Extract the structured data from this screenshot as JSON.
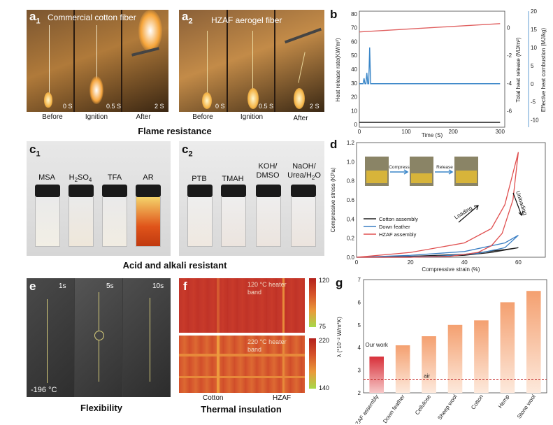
{
  "panel_a1": {
    "label": "a",
    "sub": "1",
    "title": "Commercial cotton fiber",
    "frames": [
      {
        "caption": "Before",
        "time": "0 S"
      },
      {
        "caption": "Ignition",
        "time": "0.5 S"
      },
      {
        "caption": "After",
        "time": "2 S"
      }
    ]
  },
  "panel_a2": {
    "label": "a",
    "sub": "2",
    "title": "HZAF aerogel fiber",
    "frames": [
      {
        "caption": "Before",
        "time": "0 S"
      },
      {
        "caption": "Ignition",
        "time": "0.5 S"
      },
      {
        "caption": "After",
        "time": "2 S"
      }
    ]
  },
  "flame_caption": "Flame resistance",
  "panel_c1": {
    "label": "c",
    "sub": "1",
    "vials": [
      "MSA",
      "H2SO4",
      "TFA",
      "AR"
    ]
  },
  "panel_c2": {
    "label": "c",
    "sub": "2",
    "vials": [
      "PTB",
      "TMAH",
      "KOH/ DMSO",
      "NaOH/ Urea/H2O"
    ]
  },
  "acid_caption": "Acid and alkali resistant",
  "panel_e": {
    "label": "e",
    "times": [
      "1s",
      "5s",
      "10s"
    ],
    "temp": "-196 °C",
    "caption": "Flexibility"
  },
  "panel_f": {
    "label": "f",
    "top_band": "120 °C heater band",
    "bottom_band": "220 °C heater band",
    "scale_top": [
      "120",
      "75"
    ],
    "scale_bottom": [
      "220",
      "140"
    ],
    "x_labels": [
      "Cotton",
      "HZAF"
    ],
    "caption": "Thermal insulation"
  },
  "chart_data": [
    {
      "id": "b",
      "type": "line",
      "xlabel": "Time (S)",
      "ylabel_left": "Heat release rate(KW/m²)",
      "ylabel_right1": "Total heat release (MJ/m²)",
      "ylabel_right2": "Effective heat combustion (MJ/kg)",
      "x_ticks": [
        0,
        100,
        200,
        300
      ],
      "left_ticks": [
        0,
        10,
        20,
        30,
        40,
        50,
        60,
        70,
        80
      ],
      "right1_ticks": [
        -6,
        -4,
        -2,
        0
      ],
      "right2_ticks": [
        -10,
        -5,
        0,
        5,
        10,
        15,
        20
      ],
      "xlim": [
        0,
        310
      ],
      "series": [
        {
          "axis": "left",
          "color": "#111111",
          "x": [
            0,
            300
          ],
          "y": [
            1.5,
            1.5
          ]
        },
        {
          "axis": "right1",
          "color": "#e06060",
          "x": [
            0,
            300
          ],
          "y": [
            -0.3,
            0.3
          ]
        },
        {
          "axis": "right2",
          "color": "#3a86c8",
          "x": [
            0,
            8,
            10,
            12,
            14,
            16,
            18,
            20,
            22,
            24,
            300
          ],
          "y": [
            0,
            0,
            1.5,
            0,
            0,
            3,
            0,
            0,
            10,
            0,
            0
          ]
        }
      ]
    },
    {
      "id": "d",
      "type": "line",
      "xlabel": "Compressive strain (%)",
      "ylabel": "Compressive stress (KPa)",
      "xlim": [
        0,
        70
      ],
      "ylim": [
        0,
        1.2
      ],
      "x_ticks": [
        0,
        20,
        40,
        60
      ],
      "y_ticks": [
        0.0,
        0.2,
        0.4,
        0.6,
        0.8,
        1.0,
        1.2
      ],
      "legend": [
        "Cotton assembly",
        "Down feather",
        "HZAF assembly"
      ],
      "annotations": [
        "Loading",
        "Unloading",
        "Compress",
        "Release"
      ],
      "series": [
        {
          "name": "Cotton assembly",
          "color": "#222222",
          "x": [
            0,
            20,
            40,
            55,
            60,
            50,
            40,
            20,
            0
          ],
          "y": [
            0,
            0.01,
            0.03,
            0.08,
            0.1,
            0.05,
            0.02,
            0.0,
            0
          ]
        },
        {
          "name": "Down feather",
          "color": "#3a7fc4",
          "x": [
            0,
            20,
            40,
            55,
            60,
            55,
            45,
            30,
            10,
            0
          ],
          "y": [
            0,
            0.02,
            0.06,
            0.15,
            0.23,
            0.1,
            0.04,
            0.01,
            0.0,
            0
          ]
        },
        {
          "name": "HZAF assembly",
          "color": "#e05050",
          "x": [
            0,
            20,
            40,
            50,
            55,
            60,
            58,
            54,
            50,
            45,
            35,
            20,
            0
          ],
          "y": [
            0,
            0.05,
            0.15,
            0.3,
            0.55,
            1.1,
            0.6,
            0.25,
            0.12,
            0.05,
            0.01,
            0.0,
            0
          ]
        }
      ]
    },
    {
      "id": "g",
      "type": "bar",
      "ylabel": "λ (*10⁻² W/m*K)",
      "ylim": [
        2,
        7
      ],
      "y_ticks": [
        2,
        3,
        4,
        5,
        6,
        7
      ],
      "categories": [
        "HZAF assembly",
        "Down feather",
        "Cellulose",
        "Sheep wool",
        "Cotton",
        "Hemp",
        "Stone wool"
      ],
      "values": [
        3.6,
        4.1,
        4.5,
        5.0,
        5.2,
        6.0,
        6.5
      ],
      "air_value": 2.6,
      "air_label": "air",
      "highlight_label": "Our work"
    }
  ]
}
